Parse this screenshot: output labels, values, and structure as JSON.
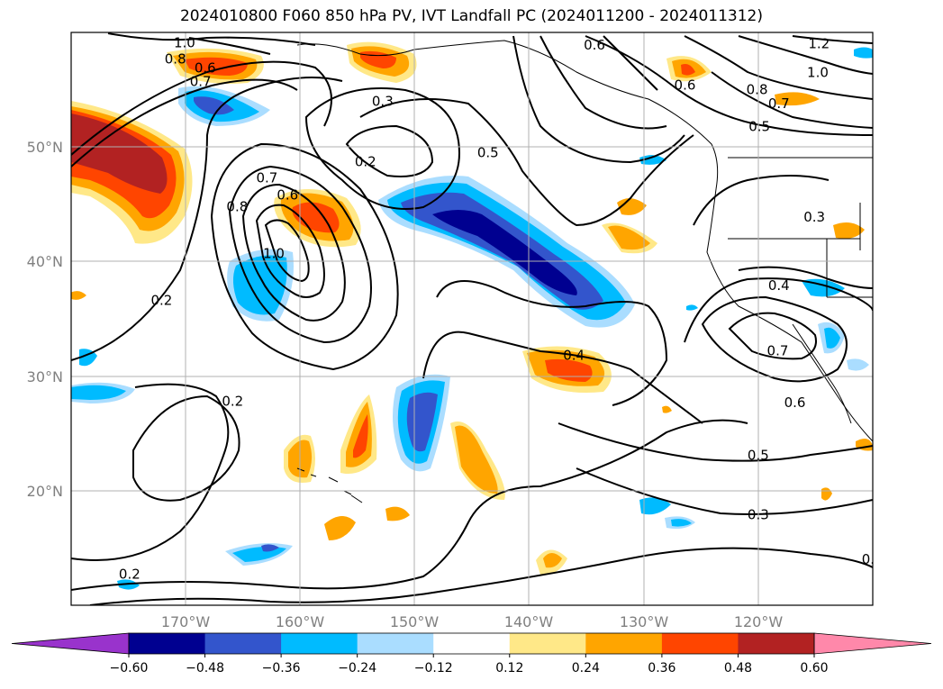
{
  "title": "2024010800 F060 850 hPa PV, IVT Landfall PC (2024011200 - 2024011312)",
  "map": {
    "lon_range": [
      -180,
      -110
    ],
    "lat_range": [
      10,
      60
    ],
    "lat_ticks": [
      "20°N",
      "30°N",
      "40°N",
      "50°N"
    ],
    "lon_ticks": [
      "170°W",
      "160°W",
      "150°W",
      "140°W",
      "130°W",
      "120°W"
    ],
    "grid": true
  },
  "contour_labels": [
    {
      "text": "1.0",
      "lon": -170.1,
      "lat": 59.1
    },
    {
      "text": "0.8",
      "lon": -170.9,
      "lat": 57.7
    },
    {
      "text": "0.6",
      "lon": -168.3,
      "lat": 56.9
    },
    {
      "text": "0.7",
      "lon": -168.7,
      "lat": 55.7
    },
    {
      "text": "0.3",
      "lon": -152.8,
      "lat": 54.0
    },
    {
      "text": "0.2",
      "lon": -154.3,
      "lat": 48.7
    },
    {
      "text": "0.7",
      "lon": -162.9,
      "lat": 47.3
    },
    {
      "text": "0.6",
      "lon": -161.1,
      "lat": 45.8
    },
    {
      "text": "0.8",
      "lon": -165.5,
      "lat": 44.8
    },
    {
      "text": "1.0",
      "lon": -162.3,
      "lat": 40.7
    },
    {
      "text": "0.2",
      "lon": -172.1,
      "lat": 36.6
    },
    {
      "text": "0.5",
      "lon": -143.6,
      "lat": 49.5
    },
    {
      "text": "0.6",
      "lon": -134.3,
      "lat": 58.9
    },
    {
      "text": "1.2",
      "lon": -114.7,
      "lat": 59.0
    },
    {
      "text": "1.0",
      "lon": -114.8,
      "lat": 56.5
    },
    {
      "text": "0.6",
      "lon": -126.4,
      "lat": 55.4
    },
    {
      "text": "0.8",
      "lon": -120.1,
      "lat": 55.0
    },
    {
      "text": "0.7",
      "lon": -118.2,
      "lat": 53.8
    },
    {
      "text": "0.5",
      "lon": -119.9,
      "lat": 51.8
    },
    {
      "text": "0.3",
      "lon": -115.1,
      "lat": 43.9
    },
    {
      "text": "0.4",
      "lon": -118.2,
      "lat": 37.9
    },
    {
      "text": "0.7",
      "lon": -118.3,
      "lat": 32.2
    },
    {
      "text": "0.6",
      "lon": -116.8,
      "lat": 27.7
    },
    {
      "text": "0.5",
      "lon": -120.0,
      "lat": 23.1
    },
    {
      "text": "0.3",
      "lon": -120.0,
      "lat": 17.9
    },
    {
      "text": "0.4",
      "lon": -136.1,
      "lat": 31.8
    },
    {
      "text": "0.2",
      "lon": -165.9,
      "lat": 27.8
    },
    {
      "text": "0.2",
      "lon": -174.9,
      "lat": 12.7
    },
    {
      "text": "0.",
      "lon": -110.4,
      "lat": 14.0
    }
  ],
  "colorbar": {
    "tick_labels": [
      "−0.60",
      "−0.48",
      "−0.36",
      "−0.24",
      "−0.12",
      "0.12",
      "0.24",
      "0.36",
      "0.48",
      "0.60"
    ],
    "levels": [
      -0.6,
      -0.48,
      -0.36,
      -0.24,
      -0.12,
      0.12,
      0.24,
      0.36,
      0.48,
      0.6
    ],
    "colors": [
      "#9933cc",
      "#000090",
      "#3355cc",
      "#00bbff",
      "#aaddff",
      "#ffffff",
      "#ffe888",
      "#ffa500",
      "#ff4500",
      "#b22222",
      "#ff88aa"
    ],
    "extend": "both"
  }
}
